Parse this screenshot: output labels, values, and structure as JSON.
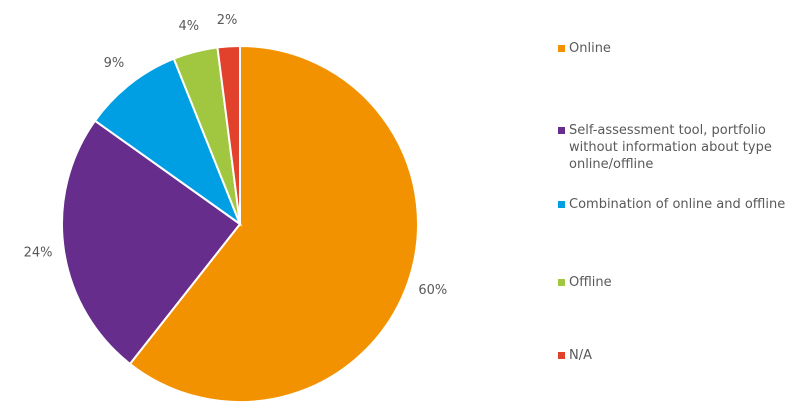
{
  "chart_data": {
    "type": "pie",
    "categories": [
      "Online",
      "Self-assessment tool, portfolio without information about type online/offline",
      "Combination of online and offline",
      "Offline",
      "N/A"
    ],
    "values": [
      60,
      24,
      9,
      4,
      2
    ],
    "value_labels": [
      "60%",
      "24%",
      "9%",
      "4%",
      "2%"
    ],
    "colors": [
      "#f39200",
      "#662d8c",
      "#009fe3",
      "#a1c741",
      "#e2412b"
    ],
    "legend": "right"
  }
}
